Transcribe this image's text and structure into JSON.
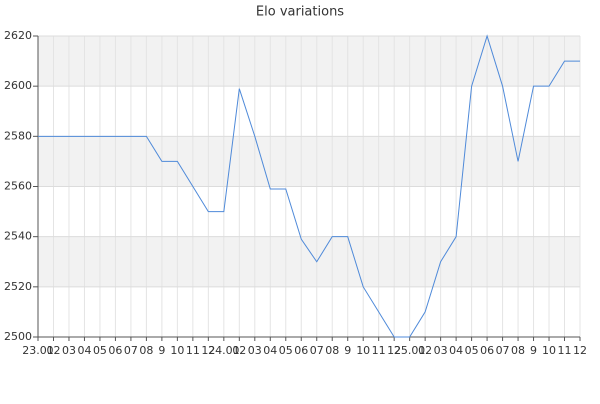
{
  "chart_data": {
    "type": "line",
    "title": "Elo variations",
    "categories": [
      "23.01",
      "02",
      "03",
      "04",
      "05",
      "06",
      "07",
      "08",
      "9",
      "10",
      "11",
      "12",
      "24.01",
      "02",
      "03",
      "04",
      "05",
      "06",
      "07",
      "08",
      "9",
      "10",
      "11",
      "12",
      "25.01",
      "02",
      "03",
      "04",
      "05",
      "06",
      "07",
      "08",
      "9",
      "10",
      "11",
      "12"
    ],
    "values": [
      2580,
      2580,
      2580,
      2580,
      2580,
      2580,
      2580,
      2580,
      2570,
      2570,
      2560,
      2550,
      2550,
      2599,
      2580,
      2559,
      2559,
      2539,
      2530,
      2540,
      2540,
      2520,
      2510,
      2500,
      2500,
      2510,
      2530,
      2540,
      2600,
      2620,
      2600,
      2570,
      2600,
      2600,
      2610,
      2610
    ],
    "color": "#4f8ad9",
    "ylim": [
      2500,
      2620
    ],
    "yticks": [
      2500,
      2520,
      2540,
      2560,
      2580,
      2600,
      2620
    ],
    "grid": true
  }
}
